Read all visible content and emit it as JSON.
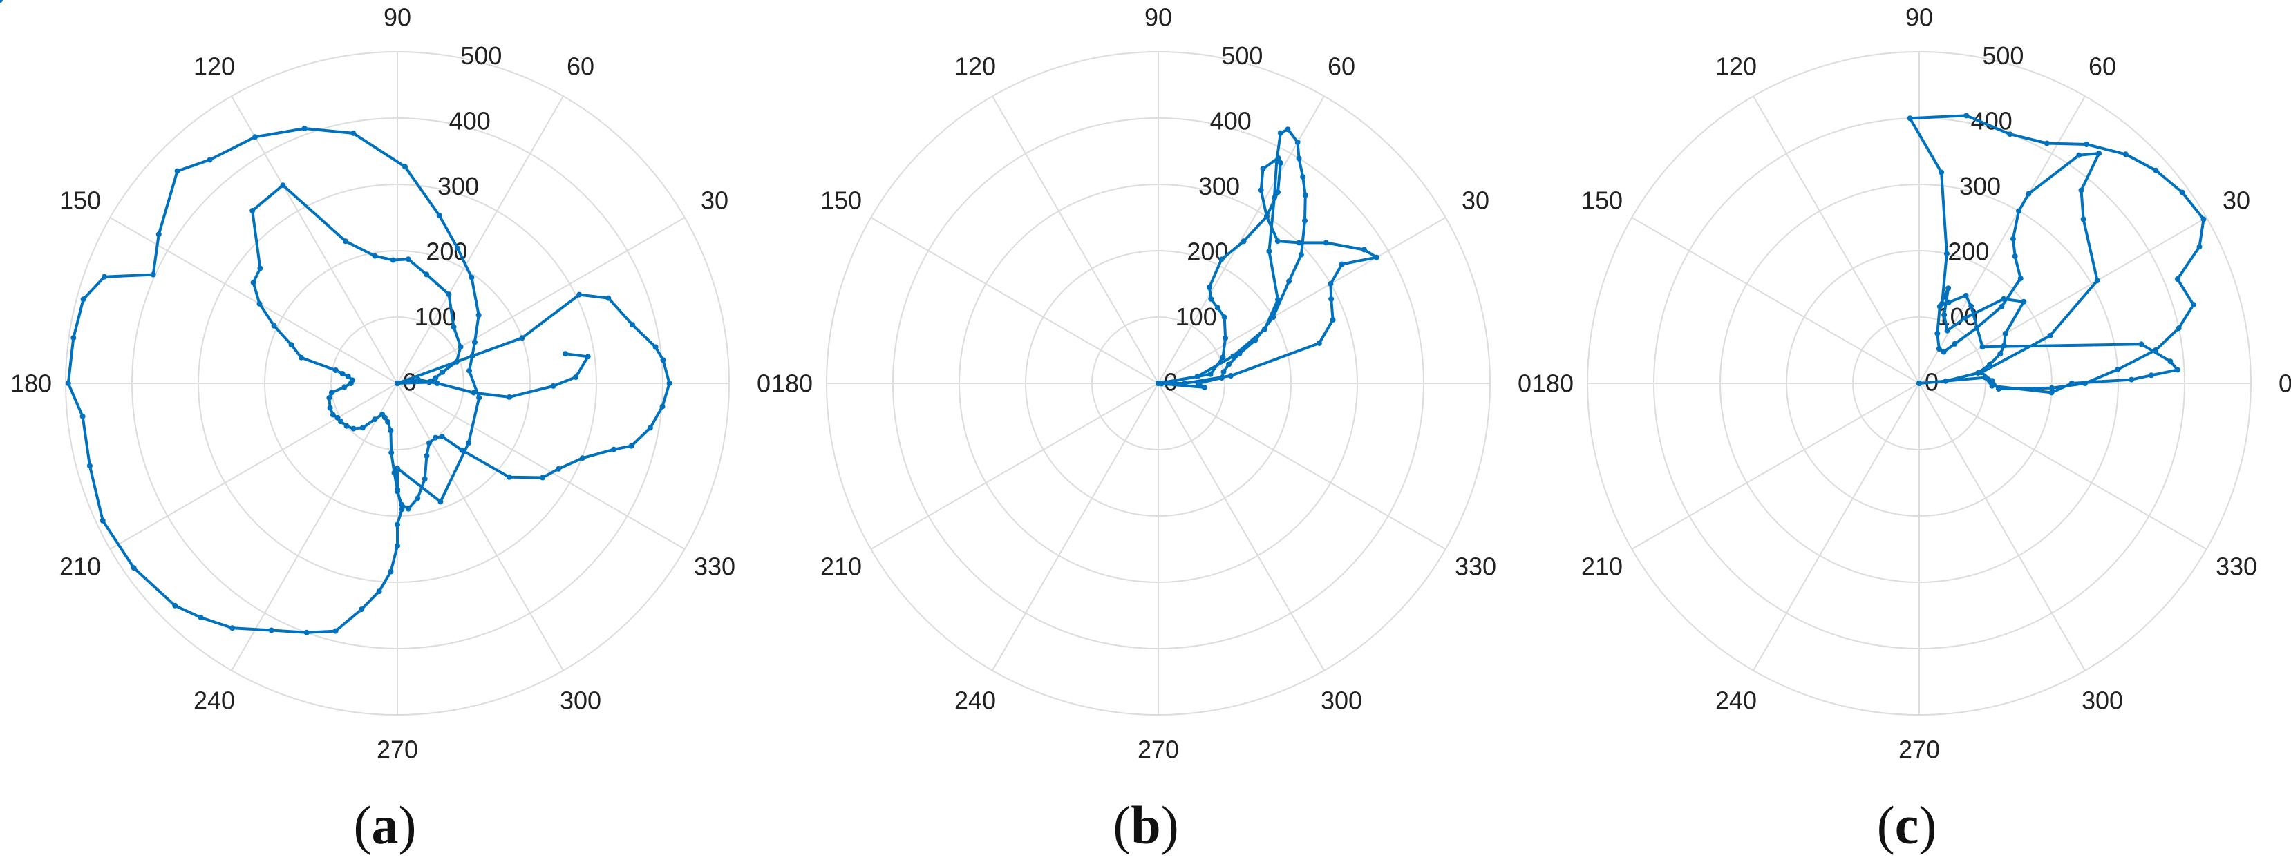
{
  "figure": {
    "colors": {
      "series": "#0072bd",
      "grid": "#dcdcdc",
      "text": "#222222"
    }
  },
  "chart_data": [
    {
      "type": "polar-line",
      "panel_label": "a",
      "theta_unit": "degrees",
      "theta_ticks": [
        "0",
        "30",
        "60",
        "90",
        "120",
        "150",
        "180",
        "210",
        "240",
        "270",
        "300",
        "330"
      ],
      "r_ticks": [
        "0",
        "100",
        "200",
        "300",
        "400",
        "500"
      ],
      "rlim": [
        0,
        500
      ],
      "grid": true,
      "series": [
        {
          "theta": [
            0,
            20,
            26,
            22,
            14,
            8,
            5,
            0,
            -5,
            -10,
            -15,
            -17,
            -22,
            -28,
            -33,
            -40,
            -46,
            -50,
            -55,
            -62,
            -68,
            -74,
            -80,
            -85,
            -88,
            -90,
            -90,
            -70,
            -40,
            -10,
            10,
            20,
            28,
            40,
            55,
            66,
            76,
            88,
            100,
            110,
            120,
            130,
            136,
            148,
            156,
            160,
            165,
            172,
            180,
            186,
            195,
            205,
            215,
            225,
            230,
            236,
            243,
            250,
            256,
            261,
            265,
            268,
            270,
            270,
            272,
            270,
            268,
            265,
            262,
            256,
            250,
            244,
            238,
            232,
            226,
            220,
            214,
            210,
            206,
            200,
            192,
            188,
            184,
            180,
            176,
            172,
            170,
            168,
            165,
            160,
            155,
            150,
            145,
            140,
            130,
            120,
            110,
            100,
            92,
            85,
            75,
            60,
            45,
            30,
            20,
            14,
            8,
            4,
            2,
            0,
            10,
            0,
            -7,
            -7,
            -1,
            2,
            8,
            10,
            10
          ],
          "r": [
            0,
            200,
            305,
            343,
            365,
            393,
            402,
            410,
            401,
            387,
            365,
            341,
            301,
            275,
            261,
            220,
            140,
            105,
            100,
            102,
            118,
            150,
            176,
            190,
            183,
            163,
            128,
            190,
            140,
            125,
            110,
            120,
            132,
            160,
            195,
            223,
            261,
            327,
            383,
            409,
            429,
            440,
            461,
            424,
            403,
            470,
            490,
            493,
            496,
            477,
            480,
            490,
            485,
            474,
            461,
            445,
            418,
            400,
            385,
            345,
            315,
            284,
            245,
            213,
            190,
            160,
            135,
            105,
            72,
            60,
            55,
            52,
            64,
            85,
            95,
            100,
            103,
            104,
            108,
            108,
            105,
            100,
            80,
            70,
            68,
            75,
            84,
            95,
            150,
            170,
            205,
            240,
            265,
            270,
            340,
            345,
            228,
            195,
            186,
            188,
            170,
            155,
            120,
            110,
            95,
            70,
            58,
            50,
            48,
            0,
            32,
            60,
            116,
            170,
            235,
            269,
            290,
            257
          ]
        }
      ]
    },
    {
      "type": "polar-line",
      "panel_label": "b",
      "theta_unit": "degrees",
      "theta_ticks": [
        "0",
        "30",
        "60",
        "90",
        "120",
        "150",
        "180",
        "210",
        "240",
        "270",
        "300",
        "330"
      ],
      "r_ticks": [
        "0",
        "100",
        "200",
        "300",
        "400",
        "500"
      ],
      "rlim": [
        0,
        500
      ],
      "grid": true,
      "series": [
        {
          "theta": [
            0,
            10,
            22,
            34,
            45,
            52,
            58,
            62,
            63,
            59,
            57,
            58,
            61,
            62,
            64,
            62,
            57,
            50,
            45,
            40,
            33,
            30,
            33,
            30,
            26,
            20,
            14,
            6,
            0,
            -4,
            0,
            10,
            20,
            27,
            35,
            50,
            58,
            62,
            64,
            63,
            60,
            58,
            55,
            52,
            48,
            42,
            38,
            30,
            24,
            20,
            15,
            10,
            5,
            0,
            -5,
            -6,
            0
          ],
          "r": [
            0,
            80,
            105,
            122,
            141,
            145,
            150,
            164,
            210,
            250,
            300,
            340,
            380,
            385,
            360,
            330,
            300,
            280,
            300,
            330,
            370,
            380,
            330,
            300,
            290,
            280,
            250,
            110,
            40,
            0,
            5,
            60,
            120,
            180,
            220,
            260,
            330,
            380,
            420,
            430,
            420,
            400,
            380,
            360,
            330,
            290,
            250,
            200,
            160,
            130,
            110,
            100,
            96,
            60,
            70,
            5,
            0
          ]
        }
      ]
    },
    {
      "type": "polar-line",
      "panel_label": "c",
      "theta_unit": "degrees",
      "theta_ticks": [
        "0",
        "30",
        "60",
        "90",
        "120",
        "150",
        "180",
        "210",
        "240",
        "270",
        "300",
        "330"
      ],
      "r_ticks": [
        "0",
        "100",
        "200",
        "300",
        "400",
        "500"
      ],
      "rlim": [
        0,
        500
      ],
      "grid": true,
      "series": [
        {
          "theta": [
            0,
            5,
            -2,
            -4,
            0,
            1,
            2,
            3,
            5,
            10,
            30,
            56,
            62,
            70,
            74,
            78,
            84,
            92,
            80,
            70,
            62,
            55,
            48,
            42,
            36,
            30,
            26,
            22,
            16,
            12,
            8,
            4,
            0,
            -2,
            -4,
            2,
            10,
            20,
            30,
            45,
            50,
            52,
            55,
            60,
            60,
            57,
            53,
            46,
            43,
            44,
            48,
            52,
            60,
            70,
            75,
            73,
            70,
            62,
            55,
            45,
            38,
            30,
            24,
            20,
            15,
            10,
            5,
            0
          ],
          "r": [
            0,
            100,
            110,
            200,
            230,
            320,
            350,
            390,
            380,
            340,
            110,
            140,
            150,
            130,
            125,
            200,
            320,
            400,
            410,
            400,
            410,
            440,
            465,
            480,
            490,
            495,
            470,
            420,
            430,
            400,
            360,
            300,
            250,
            200,
            120,
            110,
            95,
            210,
            310,
            350,
            380,
            440,
            420,
            330,
            300,
            260,
            240,
            220,
            170,
            120,
            80,
            60,
            60,
            80,
            120,
            150,
            110,
            90,
            120,
            180,
            200,
            150,
            140,
            130,
            110,
            90,
            40,
            0
          ]
        }
      ]
    }
  ]
}
